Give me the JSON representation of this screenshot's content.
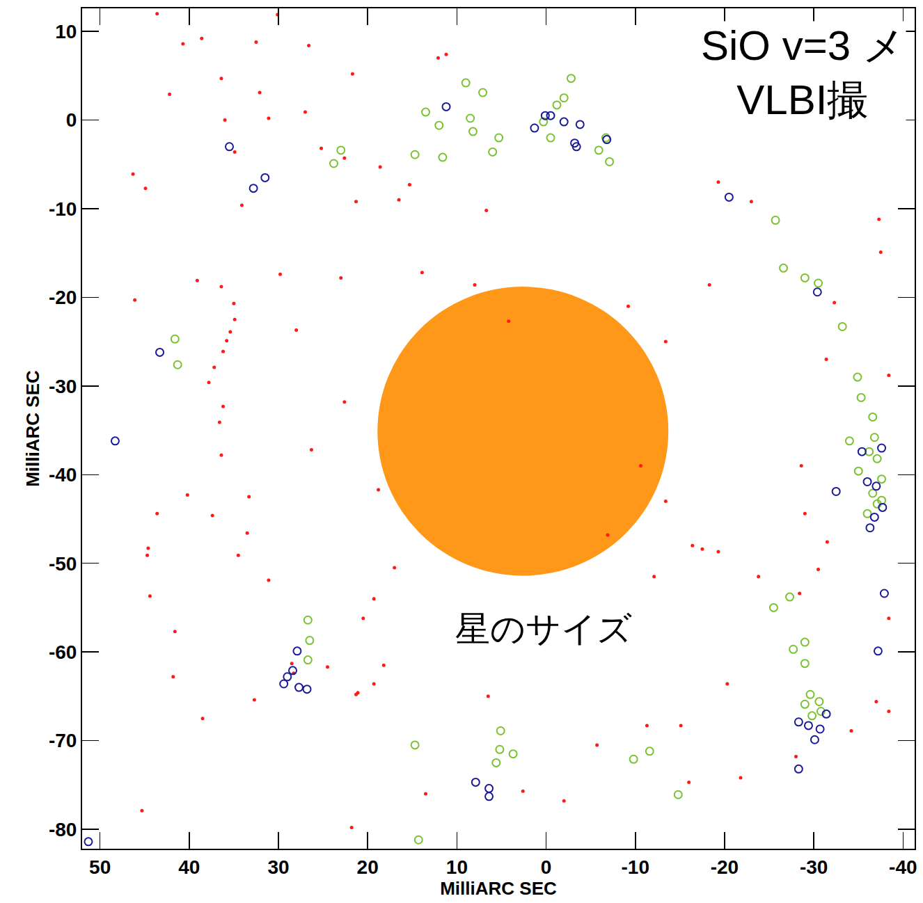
{
  "chart_data": {
    "type": "scatter",
    "title": [
      "SiO v=3 メ",
      "VLBI撮"
    ],
    "x_label": "MilliARC SEC",
    "y_label": "MilliARC SEC",
    "xlim": [
      52,
      -41.3
    ],
    "ylim": [
      -82.2,
      12.6
    ],
    "xticks": [
      50,
      40,
      30,
      20,
      10,
      0,
      -10,
      -20,
      -30,
      -40
    ],
    "yticks": [
      10,
      0,
      -10,
      -20,
      -30,
      -40,
      -50,
      -60,
      -70,
      -80
    ],
    "grid": false,
    "star": {
      "x": 2.6,
      "y": -35.1,
      "radius": 16.3,
      "color": "#ff8c00",
      "label": "星のサイズ",
      "label_x": 0.3,
      "label_y": -57.4
    },
    "series": [
      {
        "color": "#ff1a1a",
        "marker": "circle",
        "x": [
          43.6,
          40.7,
          38.6,
          32.5,
          30.1,
          26.6,
          21.7,
          12.1,
          11.2,
          36.4,
          42.2,
          32.1,
          27.0,
          36.0,
          31.1,
          34.9,
          25.2,
          22.6,
          18.6,
          15.3,
          16.5,
          21.3,
          34.1,
          46.3,
          44.9,
          6.7,
          13.9,
          8.0,
          -19.3,
          -23.0,
          -37.3,
          -37.5,
          -32.3,
          -31.4,
          -18.3,
          -9.2,
          -13.4,
          -28.6,
          -30.5,
          -31.5,
          -29.0,
          -38.4,
          -38.4,
          -38.4,
          -37.0,
          -28.4,
          -23.8,
          -16.4,
          -17.5,
          -19.3,
          -12.1,
          -13.4,
          -10.6,
          -6.9,
          -20.3,
          -15.1,
          -16.0,
          -21.8,
          -28.0,
          -34.2,
          -11.3,
          -5.7,
          -2.0,
          2.6,
          6.5,
          13.5,
          18.2,
          19.3,
          21.1,
          24.5,
          19.3,
          20.5,
          21.3,
          32.7,
          38.5,
          41.8,
          41.6,
          44.4,
          44.7,
          44.6,
          43.6,
          40.2,
          37.4,
          34.5,
          33.5,
          33.3,
          31.1,
          26.3,
          22.6,
          28.0,
          29.8,
          23.0,
          36.4,
          39.1,
          46.1,
          18.8,
          17.0,
          45.3,
          21.8,
          4.2,
          34.9,
          35.4,
          35.8,
          36.2,
          37.2,
          37.8,
          36.2,
          36.6,
          36.4,
          35.0,
          28.5,
          28.3
        ],
        "y": [
          12.0,
          8.6,
          9.2,
          8.8,
          11.9,
          8.4,
          5.2,
          7.0,
          7.4,
          4.7,
          2.9,
          3.1,
          0.9,
          0.0,
          0.2,
          -3.6,
          -3.2,
          -4.3,
          -5.3,
          -7.3,
          -9.0,
          -9.2,
          -9.6,
          -6.1,
          -7.7,
          -10.2,
          -17.2,
          -18.6,
          -7.0,
          -9.2,
          -11.2,
          -14.9,
          -20.6,
          -27.0,
          -18.6,
          -21.0,
          -25.0,
          -39.0,
          -50.7,
          -47.6,
          -44.4,
          -28.8,
          -56.2,
          -66.7,
          -65.6,
          -53.4,
          -51.5,
          -48.0,
          -48.4,
          -48.7,
          -51.5,
          -43.0,
          -39.0,
          -46.8,
          -63.6,
          -68.3,
          -74.7,
          -74.2,
          -71.8,
          -68.9,
          -68.3,
          -70.5,
          -76.8,
          -75.7,
          -65.0,
          -76.0,
          -61.5,
          -63.6,
          -64.6,
          -61.7,
          -54.0,
          -56.2,
          -64.8,
          -65.4,
          -67.5,
          -62.8,
          -57.7,
          -53.7,
          -49.1,
          -48.3,
          -44.4,
          -42.3,
          -44.6,
          -49.1,
          -46.6,
          -42.5,
          -51.9,
          -37.2,
          -31.8,
          -23.7,
          -17.4,
          -17.8,
          -18.8,
          -18.1,
          -20.3,
          -41.7,
          -50.5,
          -77.9,
          -79.8,
          -22.7,
          -22.5,
          -23.9,
          -24.9,
          -26.1,
          -27.9,
          -29.6,
          -32.3,
          -34.1,
          -37.8,
          -20.7,
          -61.3,
          -62.4
        ]
      },
      {
        "color": "#7ac231",
        "marker": "circle-open",
        "x": [
          13.5,
          12.0,
          8.5,
          8.2,
          9.0,
          7.1,
          5.3,
          6.0,
          11.6,
          14.7,
          23.8,
          23.0,
          -1.2,
          -2.0,
          -2.8,
          -0.5,
          0.3,
          -5.9,
          -7.1,
          -6.7,
          -25.7,
          -26.6,
          -30.5,
          -29.0,
          -33.2,
          41.6,
          41.3,
          -34.9,
          -35.3,
          -36.6,
          -36.8,
          -36.2,
          -37.1,
          -35.0,
          -37.6,
          -36.6,
          -37.1,
          -36.0,
          -37.6,
          -34.0,
          -29.0,
          -27.7,
          -29.0,
          -29.6,
          -29.0,
          -30.6,
          -29.8,
          -30.8,
          26.5,
          26.7,
          26.7,
          14.7,
          5.2,
          5.6,
          3.7,
          5.1,
          -9.8,
          -11.6,
          -14.8,
          14.3,
          -25.5,
          -27.3
        ],
        "y": [
          0.9,
          -0.6,
          0.2,
          -1.3,
          4.2,
          3.1,
          -2.0,
          -3.6,
          -4.2,
          -3.9,
          -4.9,
          -3.4,
          1.7,
          2.5,
          4.7,
          -2.0,
          -0.2,
          -3.4,
          -4.7,
          -2.0,
          -11.3,
          -16.7,
          -18.4,
          -17.8,
          -23.3,
          -24.7,
          -27.6,
          -29.0,
          -31.3,
          -33.5,
          -35.8,
          -37.4,
          -38.2,
          -39.6,
          -40.5,
          -42.1,
          -43.3,
          -44.4,
          -42.9,
          -36.2,
          -58.9,
          -59.7,
          -61.3,
          -64.8,
          -65.9,
          -65.6,
          -67.2,
          -66.7,
          -58.7,
          -60.9,
          -56.4,
          -70.5,
          -71.0,
          -72.5,
          -71.5,
          -68.9,
          -72.1,
          -71.2,
          -76.1,
          -81.2,
          -55.0,
          -53.8
        ]
      },
      {
        "color": "#1a1a99",
        "marker": "circle-open",
        "x": [
          35.5,
          31.5,
          32.8,
          11.2,
          1.3,
          0.1,
          -0.5,
          -2.0,
          -3.8,
          -3.2,
          -3.4,
          -6.8,
          -20.5,
          -30.4,
          43.3,
          48.3,
          -32.5,
          -35.4,
          -36.0,
          -37.6,
          -37.0,
          -37.7,
          -36.3,
          -36.8,
          -37.9,
          -37.2,
          -28.3,
          -29.4,
          -30.7,
          -31.4,
          -30.1,
          -28.3,
          27.9,
          28.4,
          29.0,
          29.4,
          27.7,
          26.8,
          7.9,
          6.4,
          6.4,
          51.3
        ],
        "y": [
          -3.0,
          -6.5,
          -7.7,
          1.5,
          -0.9,
          0.5,
          0.5,
          -0.2,
          -0.5,
          -2.6,
          -3.0,
          -2.2,
          -8.7,
          -19.4,
          -26.2,
          -36.2,
          -41.9,
          -37.4,
          -40.8,
          -37.0,
          -41.3,
          -43.7,
          -46.0,
          -44.8,
          -53.4,
          -59.9,
          -67.9,
          -68.3,
          -68.7,
          -67.0,
          -69.9,
          -73.2,
          -59.9,
          -62.1,
          -62.8,
          -63.6,
          -64.0,
          -64.2,
          -74.7,
          -75.4,
          -76.3,
          -81.4
        ]
      }
    ]
  }
}
